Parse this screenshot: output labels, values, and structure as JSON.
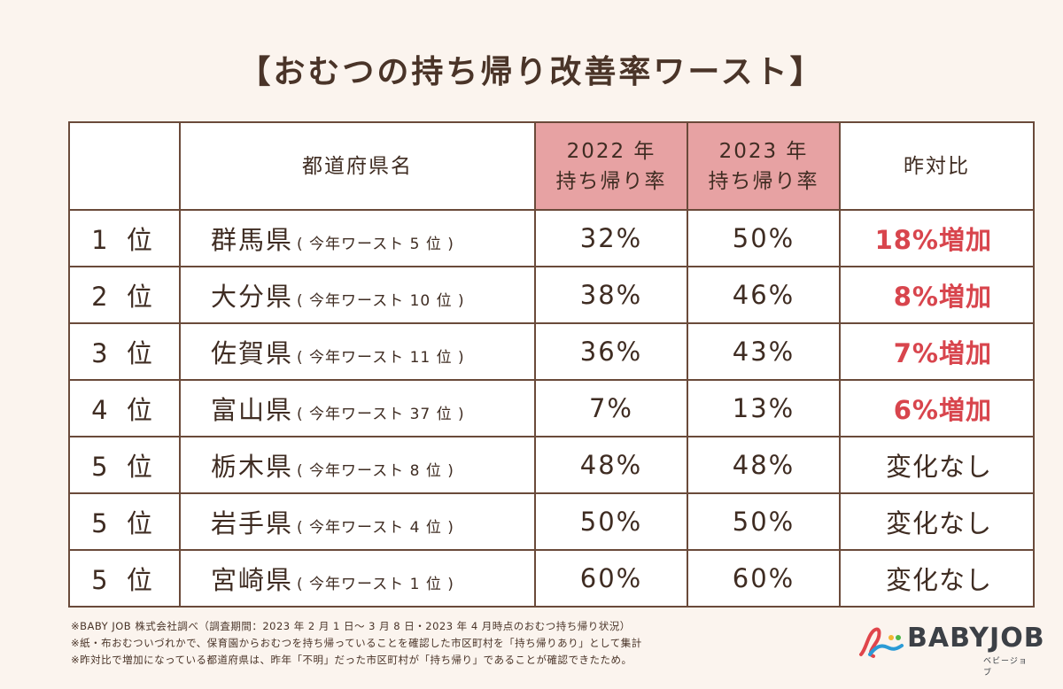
{
  "title": "【おむつの持ち帰り改善率ワースト】",
  "table": {
    "headers": {
      "rank": "",
      "prefecture": "都道府県名",
      "rate2022_line1": "2022 年",
      "rate2022_line2": "持ち帰り率",
      "rate2023_line1": "2023 年",
      "rate2023_line2": "持ち帰り率",
      "change": "昨対比"
    },
    "rows": [
      {
        "rank": "1 位",
        "prefecture": "群馬県",
        "note": "( 今年ワースト 5 位 )",
        "rate2022": "32%",
        "rate2023": "50%",
        "change": "18%増加",
        "increased": true
      },
      {
        "rank": "2 位",
        "prefecture": "大分県",
        "note": "( 今年ワースト 10 位 )",
        "rate2022": "38%",
        "rate2023": "46%",
        "change": "8%増加",
        "increased": true
      },
      {
        "rank": "3 位",
        "prefecture": "佐賀県",
        "note": "( 今年ワースト 11 位 )",
        "rate2022": "36%",
        "rate2023": "43%",
        "change": "7%増加",
        "increased": true
      },
      {
        "rank": "4 位",
        "prefecture": "富山県",
        "note": "( 今年ワースト 37 位 )",
        "rate2022": "7%",
        "rate2023": "13%",
        "change": "6%増加",
        "increased": true
      },
      {
        "rank": "5 位",
        "prefecture": "栃木県",
        "note": "( 今年ワースト 8 位 )",
        "rate2022": "48%",
        "rate2023": "48%",
        "change": "変化なし",
        "increased": false
      },
      {
        "rank": "5 位",
        "prefecture": "岩手県",
        "note": "( 今年ワースト 4 位 )",
        "rate2022": "50%",
        "rate2023": "50%",
        "change": "変化なし",
        "increased": false
      },
      {
        "rank": "5 位",
        "prefecture": "宮崎県",
        "note": "( 今年ワースト 1 位 )",
        "rate2022": "60%",
        "rate2023": "60%",
        "change": "変化なし",
        "increased": false
      }
    ]
  },
  "notes": [
    "※BABY JOB 株式会社調べ（調査期間：2023 年 2 月 1 日～ 3 月 8 日・2023 年 4 月時点のおむつ持ち帰り状況）",
    "※紙・布おむついづれかで、保育園からおむつを持ち帰っていることを確認した市区町村を「持ち帰りあり」として集計",
    "※昨対比で増加になっている都道府県は、昨年「不明」だった市区町村が「持ち帰り」であることが確認できたため。"
  ],
  "logo": {
    "name": "BABYJOB",
    "sub": "ベビージョブ"
  },
  "colors": {
    "background": "#fbf4ee",
    "header_highlight": "#e7a2a3",
    "increase_text": "#d8454d",
    "border": "#6a4a3a",
    "text": "#3f2c22"
  }
}
